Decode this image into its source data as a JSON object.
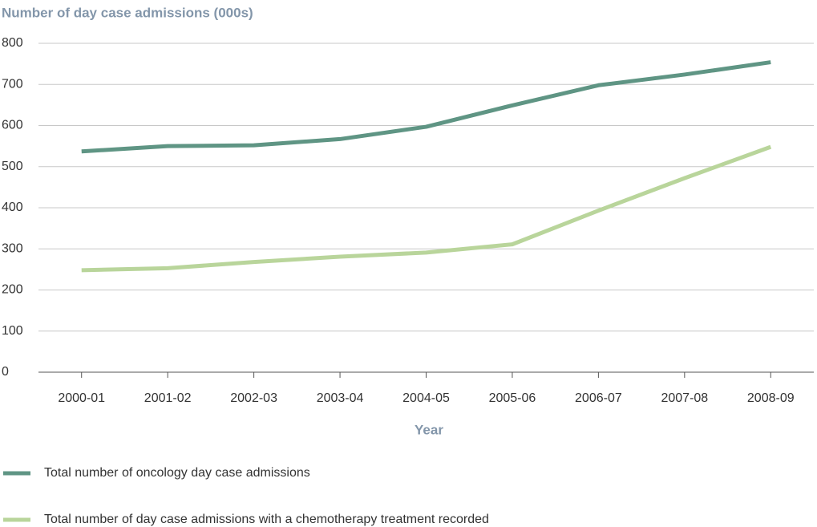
{
  "chart_data": {
    "type": "line",
    "y_axis_label": "Number of day case admissions (000s)",
    "x_axis_label": "Year",
    "categories": [
      "2000-01",
      "2001-02",
      "2002-03",
      "2003-04",
      "2004-05",
      "2005-06",
      "2006-07",
      "2007-08",
      "2008-09"
    ],
    "series": [
      {
        "name": "Total number of oncology day case admissions",
        "color": "#5f9584",
        "values": [
          537,
          550,
          552,
          567,
          597,
          649,
          698,
          724,
          754
        ]
      },
      {
        "name": "Total number of day case admissions with a chemotherapy treatment recorded",
        "color": "#b9d59b",
        "values": [
          248,
          253,
          268,
          281,
          291,
          311,
          393,
          472,
          548
        ]
      }
    ],
    "ylim": [
      0,
      800
    ],
    "yticks": [
      0,
      100,
      200,
      300,
      400,
      500,
      600,
      700,
      800
    ],
    "grid": true
  }
}
